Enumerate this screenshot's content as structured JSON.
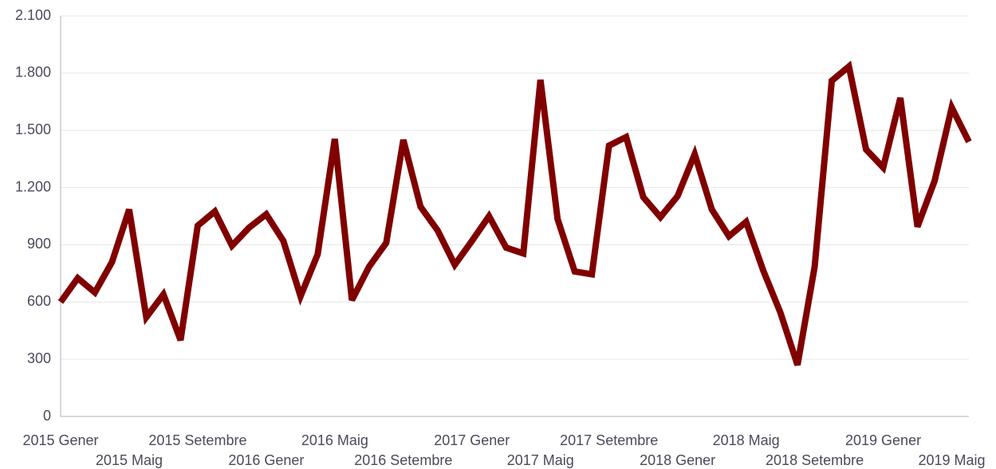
{
  "chart_data": {
    "type": "line",
    "categories": [
      "2015 Gener",
      null,
      null,
      null,
      "2015 Maig",
      null,
      null,
      null,
      "2015 Setembre",
      null,
      null,
      null,
      "2016 Gener",
      null,
      null,
      null,
      "2016 Maig",
      null,
      null,
      null,
      "2016 Setembre",
      null,
      null,
      null,
      "2017 Gener",
      null,
      null,
      null,
      "2017 Maig",
      null,
      null,
      null,
      "2017 Setembre",
      null,
      null,
      null,
      "2018 Gener",
      null,
      null,
      null,
      "2018 Maig",
      null,
      null,
      null,
      "2018 Setembre",
      null,
      null,
      null,
      "2019 Gener",
      null,
      null,
      null,
      "2019 Maig",
      null
    ],
    "series": [
      {
        "color": "#800000",
        "values": [
          600,
          725,
          650,
          810,
          1085,
          520,
          640,
          400,
          1000,
          1075,
          895,
          990,
          1060,
          920,
          630,
          850,
          1455,
          610,
          785,
          910,
          1450,
          1100,
          975,
          795,
          920,
          1050,
          885,
          855,
          1765,
          1035,
          760,
          745,
          1420,
          1465,
          1150,
          1045,
          1155,
          1375,
          1085,
          945,
          1020,
          765,
          545,
          270,
          785,
          1760,
          1835,
          1400,
          1305,
          1670,
          995,
          1235,
          1620,
          1440
        ]
      }
    ],
    "ylim": [
      0,
      2100
    ],
    "yticks": [
      0,
      300,
      600,
      900,
      {
        "value": 1200,
        "label": "1.200"
      },
      {
        "value": 1500,
        "label": "1.500"
      },
      {
        "value": 1800,
        "label": "1.800"
      },
      {
        "value": 2100,
        "label": "2.100"
      }
    ],
    "grid": true
  }
}
